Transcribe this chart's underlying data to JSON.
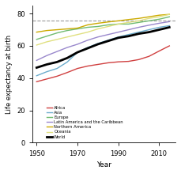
{
  "title": "",
  "xlabel": "Year",
  "ylabel": "Life expectancy at birth",
  "xlim": [
    1948,
    2018
  ],
  "ylim": [
    0,
    85
  ],
  "yticks": [
    0,
    20,
    40,
    60,
    80
  ],
  "xticks": [
    1950,
    1970,
    1990,
    2010
  ],
  "dashed_line_y": 75.5,
  "series": {
    "Africa": {
      "color": "#d04040",
      "linewidth": 1.0,
      "years": [
        1950,
        1955,
        1960,
        1965,
        1970,
        1975,
        1980,
        1985,
        1990,
        1995,
        2000,
        2005,
        2010,
        2015
      ],
      "values": [
        37.8,
        39.5,
        41.2,
        43.5,
        46.0,
        47.5,
        48.5,
        49.5,
        50.1,
        50.4,
        51.5,
        53.5,
        56.8,
        60.0
      ]
    },
    "Asia": {
      "color": "#6aabcc",
      "linewidth": 1.0,
      "years": [
        1950,
        1955,
        1960,
        1965,
        1970,
        1975,
        1980,
        1985,
        1990,
        1995,
        2000,
        2005,
        2010,
        2015
      ],
      "values": [
        41.5,
        44.0,
        46.0,
        50.0,
        56.0,
        59.0,
        61.5,
        63.5,
        65.5,
        67.0,
        68.5,
        70.0,
        71.5,
        72.5
      ]
    },
    "Europe": {
      "color": "#70bb70",
      "linewidth": 1.0,
      "years": [
        1950,
        1955,
        1960,
        1965,
        1970,
        1975,
        1980,
        1985,
        1990,
        1995,
        2000,
        2005,
        2010,
        2015
      ],
      "values": [
        64.0,
        66.0,
        68.0,
        69.5,
        70.5,
        71.5,
        72.0,
        73.0,
        73.5,
        73.5,
        74.5,
        75.5,
        76.5,
        78.0
      ]
    },
    "Latin America and the Caribbean": {
      "color": "#9988cc",
      "linewidth": 1.0,
      "years": [
        1950,
        1955,
        1960,
        1965,
        1970,
        1975,
        1980,
        1985,
        1990,
        1995,
        2000,
        2005,
        2010,
        2015
      ],
      "values": [
        51.0,
        54.0,
        56.5,
        59.0,
        61.0,
        63.5,
        65.5,
        67.0,
        68.5,
        70.0,
        71.5,
        72.8,
        74.0,
        75.0
      ]
    },
    "Northern America": {
      "color": "#ccaa00",
      "linewidth": 1.0,
      "years": [
        1950,
        1955,
        1960,
        1965,
        1970,
        1975,
        1980,
        1985,
        1990,
        1995,
        2000,
        2005,
        2010,
        2015
      ],
      "values": [
        68.5,
        69.5,
        70.0,
        70.5,
        71.0,
        73.0,
        74.0,
        74.8,
        75.5,
        76.3,
        77.0,
        78.0,
        79.0,
        79.5
      ]
    },
    "Oceania": {
      "color": "#e0e080",
      "linewidth": 1.0,
      "years": [
        1950,
        1955,
        1960,
        1965,
        1970,
        1975,
        1980,
        1985,
        1990,
        1995,
        2000,
        2005,
        2010,
        2015
      ],
      "values": [
        60.5,
        62.5,
        64.0,
        65.5,
        67.0,
        68.5,
        70.5,
        72.0,
        73.5,
        74.5,
        75.5,
        77.0,
        78.0,
        79.5
      ]
    },
    "World": {
      "color": "#000000",
      "linewidth": 2.0,
      "years": [
        1950,
        1955,
        1960,
        1965,
        1970,
        1975,
        1980,
        1985,
        1990,
        1995,
        2000,
        2005,
        2010,
        2015
      ],
      "values": [
        46.5,
        48.5,
        50.0,
        52.5,
        56.0,
        58.5,
        61.0,
        63.0,
        65.0,
        66.0,
        67.5,
        68.5,
        70.0,
        71.5
      ]
    }
  },
  "legend_order": [
    "Africa",
    "Asia",
    "Europe",
    "Latin America and the Caribbean",
    "Northern America",
    "Oceania",
    "World"
  ],
  "background_color": "#ffffff"
}
